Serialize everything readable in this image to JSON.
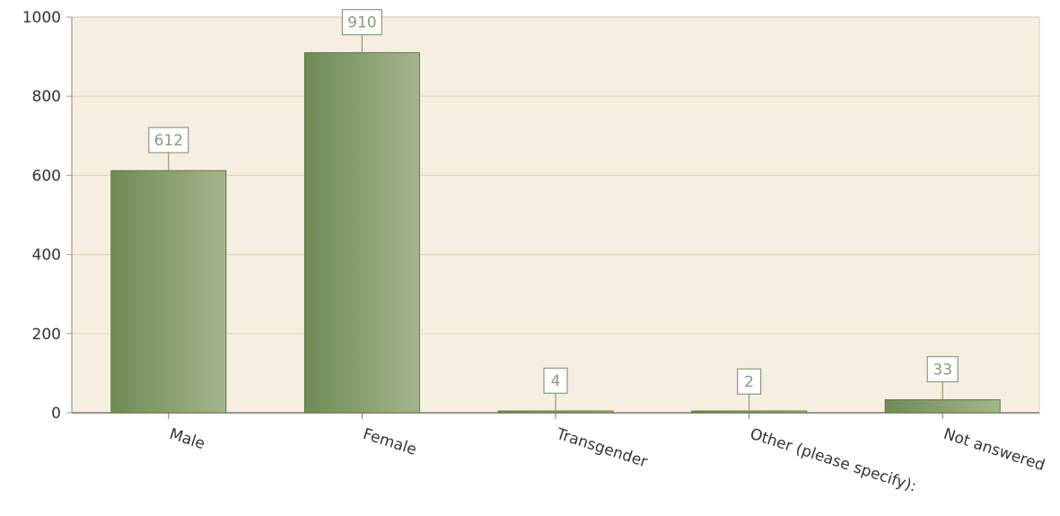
{
  "chart_data": {
    "type": "bar",
    "categories": [
      "Male",
      "Female",
      "Transgender",
      "Other (please specify):",
      "Not answered"
    ],
    "values": [
      612,
      910,
      4,
      2,
      33
    ],
    "value_labels": [
      "612",
      "910",
      "4",
      "2",
      "33"
    ],
    "yticks": [
      0,
      200,
      400,
      600,
      800,
      1000
    ],
    "ylim": [
      0,
      1000
    ],
    "title": "",
    "xlabel": "",
    "ylabel": "",
    "grid": true,
    "colors": {
      "plot_background": "#f6efe1",
      "bar_dark": "#6f8a55",
      "bar_light": "#a4b58c",
      "gridline": "#e2d6bf",
      "axis": "#999999",
      "label_box_border": "#8a9a78"
    }
  }
}
